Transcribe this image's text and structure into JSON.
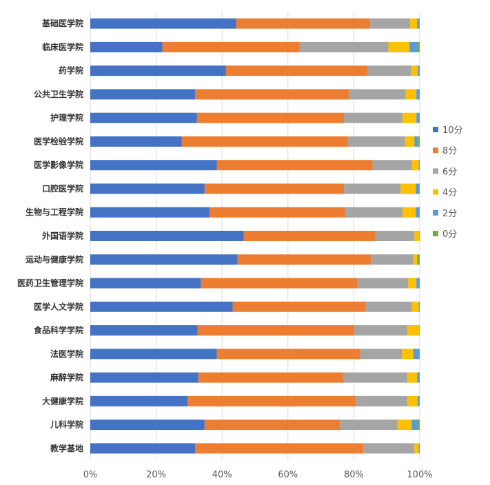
{
  "chart_data": {
    "type": "bar",
    "orientation": "horizontal",
    "stacked": "percent",
    "categories": [
      "基础医学院",
      "临床医学院",
      "药学院",
      "公共卫生学院",
      "护理学院",
      "医学检验学院",
      "医学影像学院",
      "口腔医学院",
      "生物与工程学院",
      "外国语学院",
      "运动与健康学院",
      "医药卫生管理学院",
      "医学人文学院",
      "食品科学学院",
      "法医学院",
      "麻醉学院",
      "大健康学院",
      "儿科学院",
      "教学基地"
    ],
    "series": [
      {
        "name": "10分",
        "color": "#4472C4",
        "values": [
          44.3,
          21.9,
          41.2,
          31.8,
          32.4,
          27.8,
          38.4,
          34.7,
          36.1,
          46.6,
          44.7,
          33.6,
          43.2,
          32.6,
          38.4,
          32.8,
          29.5,
          34.7,
          31.8
        ]
      },
      {
        "name": "8分",
        "color": "#ED7D31",
        "values": [
          40.7,
          41.6,
          42.9,
          46.8,
          44.6,
          50.5,
          47.3,
          42.3,
          41.3,
          39.9,
          40.5,
          47.5,
          40.4,
          47.6,
          43.5,
          44.1,
          51.1,
          41.1,
          51.1
        ]
      },
      {
        "name": "6分",
        "color": "#A5A5A5",
        "values": [
          12.1,
          27.0,
          13.3,
          17.1,
          17.8,
          17.2,
          11.9,
          17.2,
          17.4,
          11.9,
          12.8,
          15.4,
          14.0,
          16.1,
          12.7,
          19.4,
          15.7,
          17.4,
          15.5
        ]
      },
      {
        "name": "4分",
        "color": "#FFC000",
        "values": [
          2.1,
          6.4,
          2.0,
          3.3,
          4.2,
          2.9,
          2.1,
          4.6,
          4.0,
          1.5,
          1.2,
          2.5,
          2.1,
          3.6,
          3.4,
          2.9,
          3.1,
          4.4,
          1.3
        ]
      },
      {
        "name": "2分",
        "color": "#5B9BD5",
        "values": [
          0.7,
          2.5,
          0.5,
          0.9,
          1.0,
          1.0,
          0.3,
          1.1,
          1.1,
          0.1,
          0.2,
          1.0,
          0.3,
          0.1,
          1.9,
          0.8,
          0.6,
          1.8,
          0.3
        ]
      },
      {
        "name": "0分",
        "color": "#70AD47",
        "values": [
          0.1,
          0.6,
          0.1,
          0.1,
          0,
          0.6,
          0,
          0.1,
          0.1,
          0,
          0.6,
          0,
          0,
          0,
          0.1,
          0,
          0,
          0.6,
          0
        ]
      }
    ],
    "xlim": [
      0,
      100
    ],
    "x_ticks": [
      "0%",
      "20%",
      "40%",
      "60%",
      "80%",
      "100%"
    ],
    "grid": true,
    "legend_position": "right"
  }
}
